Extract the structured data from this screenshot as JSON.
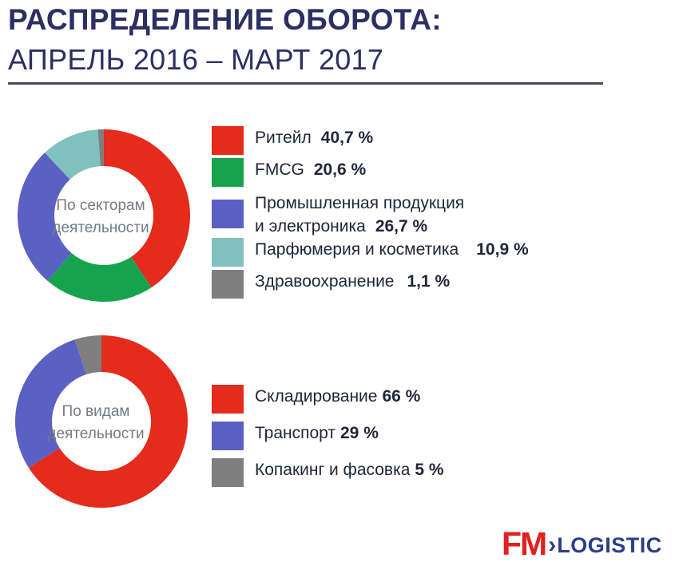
{
  "header": {
    "title_line1": "РАСПРЕДЕЛЕНИЕ ОБОРОТА:",
    "title_line2": "АПРЕЛЬ 2016 – МАРТ 2017"
  },
  "chart_data": [
    {
      "type": "pie",
      "center_label_line1": "По секторам",
      "center_label_line2": "деятельности",
      "slices": [
        {
          "label": "Ритейл",
          "value_text": "40,7 %",
          "value": 40.7,
          "color": "#e42b1c"
        },
        {
          "label": "FMCG",
          "value_text": "20,6 %",
          "value": 20.6,
          "color": "#15a44b"
        },
        {
          "label_line1": "Промышленная продукция",
          "label_line2": "и электроника",
          "value_text": "26,7 %",
          "value": 26.7,
          "color": "#5b60c4"
        },
        {
          "label": "Парфюмерия и косметика",
          "value_text": "10,9 %",
          "value": 10.9,
          "color": "#7fc2bd"
        },
        {
          "label": "Здравоохранение",
          "value_text": "1,1 %",
          "value": 1.1,
          "color": "#7f7f80"
        }
      ]
    },
    {
      "type": "pie",
      "center_label_line1": "По видам",
      "center_label_line2": "деятельности",
      "slices": [
        {
          "label": "Складирование",
          "value_text": "66 %",
          "value": 66,
          "color": "#e42b1c"
        },
        {
          "label": "Транспорт",
          "value_text": "29 %",
          "value": 29,
          "color": "#5b60c4"
        },
        {
          "label": "Копакинг и фасовка",
          "value_text": "5 %",
          "value": 5,
          "color": "#7f7f80"
        }
      ]
    }
  ],
  "logo": {
    "brand": "FM",
    "arrow": "›",
    "suffix": "LOGISTIC"
  }
}
